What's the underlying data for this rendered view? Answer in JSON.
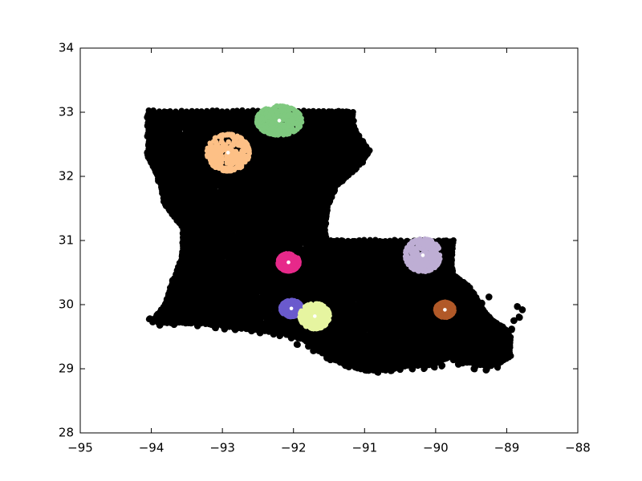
{
  "chart_data": {
    "type": "scatter",
    "title": "",
    "xlabel": "",
    "ylabel": "",
    "xlim": [
      -95,
      -88
    ],
    "ylim": [
      28,
      34
    ],
    "grid": false,
    "x_ticks": [
      -95,
      -94,
      -93,
      -92,
      -91,
      -90,
      -89,
      -88
    ],
    "y_ticks": [
      28,
      29,
      30,
      31,
      32,
      33,
      34
    ],
    "x_tick_labels": [
      "−95",
      "−94",
      "−93",
      "−92",
      "−91",
      "−90",
      "−89",
      "−88"
    ],
    "y_tick_labels": [
      "28",
      "29",
      "30",
      "31",
      "32",
      "33",
      "34"
    ],
    "background_points": {
      "color": "#000000",
      "outline_lonlat": [
        [
          -94.04,
          33.02
        ],
        [
          -93.5,
          33.02
        ],
        [
          -93.0,
          33.02
        ],
        [
          -92.5,
          33.02
        ],
        [
          -92.0,
          33.02
        ],
        [
          -91.5,
          33.02
        ],
        [
          -91.17,
          33.0
        ],
        [
          -91.15,
          32.75
        ],
        [
          -91.05,
          32.55
        ],
        [
          -90.93,
          32.4
        ],
        [
          -91.05,
          32.2
        ],
        [
          -91.2,
          32.05
        ],
        [
          -91.4,
          31.85
        ],
        [
          -91.52,
          31.55
        ],
        [
          -91.55,
          31.3
        ],
        [
          -91.55,
          31.0
        ],
        [
          -91.0,
          31.0
        ],
        [
          -90.5,
          31.0
        ],
        [
          -89.75,
          31.0
        ],
        [
          -89.78,
          30.7
        ],
        [
          -89.75,
          30.45
        ],
        [
          -89.55,
          30.3
        ],
        [
          -89.45,
          30.15
        ],
        [
          -89.35,
          29.95
        ],
        [
          -89.25,
          29.8
        ],
        [
          -89.05,
          29.65
        ],
        [
          -88.95,
          29.5
        ],
        [
          -88.95,
          29.2
        ],
        [
          -89.1,
          29.1
        ],
        [
          -89.3,
          29.05
        ],
        [
          -89.55,
          29.1
        ],
        [
          -89.8,
          29.2
        ],
        [
          -90.05,
          29.05
        ],
        [
          -90.4,
          29.05
        ],
        [
          -90.7,
          28.98
        ],
        [
          -91.0,
          28.98
        ],
        [
          -91.35,
          29.1
        ],
        [
          -91.6,
          29.25
        ],
        [
          -91.85,
          29.45
        ],
        [
          -92.15,
          29.55
        ],
        [
          -92.5,
          29.6
        ],
        [
          -92.9,
          29.65
        ],
        [
          -93.3,
          29.7
        ],
        [
          -93.6,
          29.72
        ],
        [
          -93.9,
          29.72
        ],
        [
          -93.95,
          29.8
        ],
        [
          -93.8,
          30.0
        ],
        [
          -93.72,
          30.3
        ],
        [
          -93.58,
          30.7
        ],
        [
          -93.55,
          31.0
        ],
        [
          -93.55,
          31.2
        ],
        [
          -93.7,
          31.4
        ],
        [
          -93.82,
          31.6
        ],
        [
          -93.85,
          31.8
        ],
        [
          -93.95,
          32.1
        ],
        [
          -94.04,
          32.3
        ],
        [
          -94.04,
          32.6
        ]
      ],
      "extra_points": [
        [
          -88.85,
          29.97
        ],
        [
          -88.78,
          29.92
        ],
        [
          -88.82,
          29.8
        ],
        [
          -88.9,
          29.75
        ],
        [
          -88.93,
          29.62
        ],
        [
          -89.0,
          29.55
        ],
        [
          -89.05,
          29.45
        ],
        [
          -89.02,
          29.38
        ],
        [
          -89.1,
          29.32
        ],
        [
          -89.15,
          29.22
        ],
        [
          -89.2,
          29.15
        ],
        [
          -89.38,
          29.2
        ],
        [
          -89.52,
          29.35
        ],
        [
          -89.58,
          29.45
        ],
        [
          -89.65,
          29.57
        ],
        [
          -89.72,
          29.7
        ],
        [
          -89.6,
          29.85
        ],
        [
          -89.45,
          29.93
        ],
        [
          -89.35,
          30.02
        ],
        [
          -89.25,
          30.12
        ],
        [
          -89.18,
          29.3
        ],
        [
          -89.1,
          29.43
        ],
        [
          -88.98,
          29.27
        ],
        [
          -89.22,
          29.05
        ],
        [
          -89.33,
          29.12
        ],
        [
          -89.44,
          29.04
        ],
        [
          -89.62,
          29.09
        ],
        [
          -89.75,
          29.14
        ],
        [
          -90.02,
          29.03
        ],
        [
          -90.33,
          29.0
        ],
        [
          -90.63,
          28.97
        ],
        [
          -90.96,
          28.99
        ],
        [
          -91.27,
          29.05
        ],
        [
          -91.53,
          29.17
        ],
        [
          -91.79,
          29.35
        ],
        [
          -92.03,
          29.48
        ],
        [
          -92.28,
          29.54
        ],
        [
          -92.59,
          29.59
        ],
        [
          -92.97,
          29.62
        ],
        [
          -93.35,
          29.67
        ],
        [
          -93.68,
          29.69
        ],
        [
          -93.88,
          29.68
        ],
        [
          -93.98,
          29.73
        ],
        [
          -94.02,
          29.78
        ],
        [
          -93.79,
          29.84
        ],
        [
          -93.43,
          29.72
        ],
        [
          -93.1,
          29.64
        ],
        [
          -92.82,
          29.61
        ],
        [
          -92.47,
          29.56
        ],
        [
          -92.19,
          29.52
        ],
        [
          -91.95,
          29.38
        ],
        [
          -91.72,
          29.28
        ],
        [
          -91.48,
          29.14
        ],
        [
          -91.22,
          29.03
        ],
        [
          -90.82,
          28.95
        ],
        [
          -90.5,
          28.99
        ],
        [
          -90.16,
          29.01
        ],
        [
          -89.91,
          29.05
        ],
        [
          -89.68,
          29.07
        ],
        [
          -89.46,
          29.0
        ],
        [
          -89.29,
          28.98
        ],
        [
          -89.13,
          29.03
        ],
        [
          -90.41,
          29.15
        ],
        [
          -90.2,
          29.22
        ],
        [
          -89.98,
          29.28
        ],
        [
          -90.68,
          29.17
        ],
        [
          -91.06,
          29.23
        ],
        [
          -91.31,
          29.31
        ],
        [
          -91.62,
          29.46
        ],
        [
          -91.9,
          29.57
        ],
        [
          -92.34,
          29.64
        ],
        [
          -92.74,
          29.69
        ],
        [
          -93.12,
          29.73
        ],
        [
          -93.54,
          29.78
        ]
      ]
    },
    "clusters": [
      {
        "color": "#7fc97f",
        "center": [
          -92.2,
          32.87
        ],
        "radius": [
          0.32,
          0.23
        ]
      },
      {
        "color": "#fdc086",
        "center": [
          -92.92,
          32.37
        ],
        "radius": [
          0.3,
          0.29
        ]
      },
      {
        "color": "#e7298a",
        "center": [
          -92.07,
          30.66
        ],
        "radius": [
          0.15,
          0.14
        ]
      },
      {
        "color": "#beaed4",
        "center": [
          -90.18,
          30.77
        ],
        "radius": [
          0.25,
          0.26
        ]
      },
      {
        "color": "#6a5acd",
        "center": [
          -92.03,
          29.94
        ],
        "radius": [
          0.15,
          0.13
        ]
      },
      {
        "color": "#e6f5a0",
        "center": [
          -91.7,
          29.82
        ],
        "radius": [
          0.21,
          0.2
        ]
      },
      {
        "color": "#b15928",
        "center": [
          -89.87,
          29.92
        ],
        "radius": [
          0.13,
          0.12
        ]
      }
    ]
  }
}
